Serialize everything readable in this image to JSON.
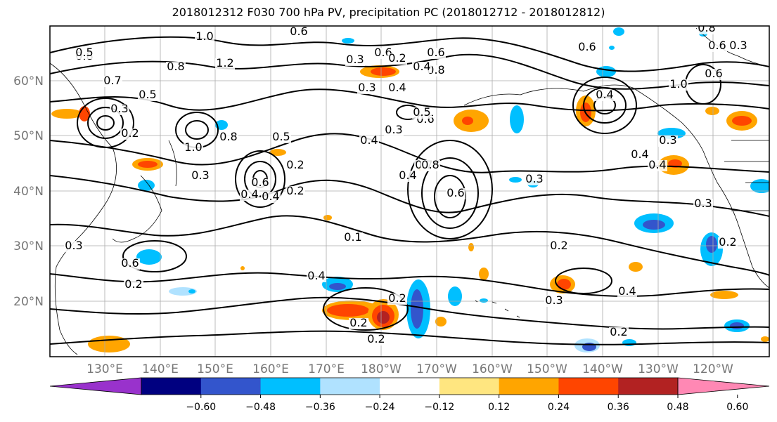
{
  "title": "2018012312 F030 700 hPa PV, precipitation PC (2018012712 - 2018012812)",
  "map": {
    "lat_labels": [
      "60°N",
      "50°N",
      "40°N",
      "30°N",
      "20°N"
    ],
    "lon_labels": [
      "130°E",
      "140°E",
      "150°E",
      "160°E",
      "170°E",
      "180°W",
      "170°W",
      "160°W",
      "150°W",
      "140°W",
      "130°W",
      "120°W"
    ],
    "contour_labels": [
      "1.0",
      "0.8",
      "0.6",
      "1.2",
      "0.8",
      "0.5",
      "0.3",
      "0.2",
      "0.7",
      "0.6",
      "1.0",
      "0.8",
      "0.3",
      "0.5",
      "0.6",
      "0.4",
      "0.4",
      "0.2",
      "0.3",
      "0.4",
      "0.4",
      "0.3",
      "0.6",
      "0.7",
      "0.8",
      "0.6",
      "0.4",
      "0.5",
      "0.8",
      "0.4",
      "0.6",
      "0.3",
      "0.4",
      "0.4",
      "0.3",
      "0.6",
      "0.3",
      "0.6",
      "0.2",
      "0.4",
      "0.6",
      "0.3",
      "0.2",
      "0.2",
      "0.2",
      "0.3",
      "0.2",
      "0.4",
      "0.2",
      "0.3",
      "0.2",
      "0.3",
      "0.1",
      "0.2",
      "0.8",
      "0.6",
      "0.5",
      "1.0",
      "0.4",
      "0.2"
    ]
  },
  "colorbar": {
    "ticks": [
      "−0.60",
      "−0.48",
      "−0.36",
      "−0.24",
      "−0.12",
      "0.12",
      "0.24",
      "0.36",
      "0.48",
      "0.60"
    ],
    "colors": [
      "#9932cc",
      "#000080",
      "#3355cc",
      "#00bfff",
      "#b0e2ff",
      "#ffffff",
      "#ffe680",
      "#ffa500",
      "#ff4500",
      "#b22222",
      "#ff88b4"
    ]
  }
}
